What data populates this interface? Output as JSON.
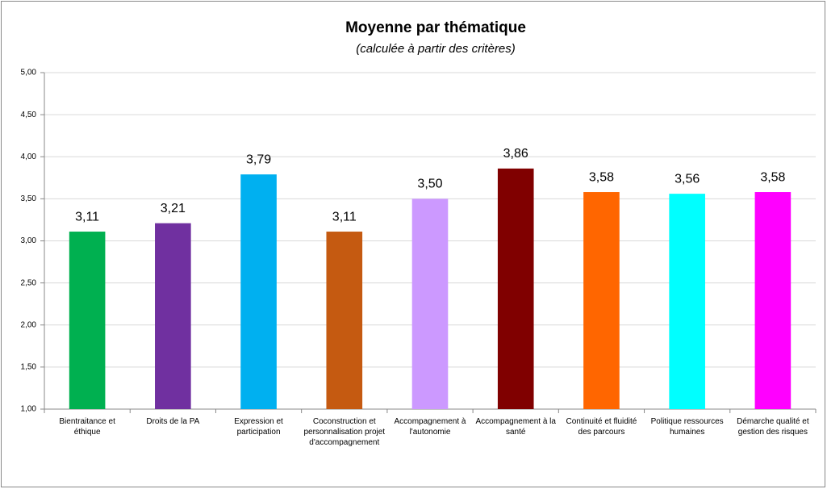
{
  "chart_data": {
    "type": "bar",
    "title": "Moyenne par thématique",
    "subtitle": "(calculée à partir des critères)",
    "categories": [
      "Bientraitance et éthique",
      "Droits de la PA",
      "Expression et participation",
      "Coconstruction et personnalisation projet d'accompagnement",
      "Accompagnement à l'autonomie",
      "Accompagnement à la santé",
      "Continuité et fluidité des parcours",
      "Politique ressources humaines",
      "Démarche qualité et gestion des risques"
    ],
    "values": [
      3.11,
      3.21,
      3.79,
      3.11,
      3.5,
      3.86,
      3.58,
      3.56,
      3.58
    ],
    "value_labels": [
      "3,11",
      "3,21",
      "3,79",
      "3,11",
      "3,50",
      "3,86",
      "3,58",
      "3,56",
      "3,58"
    ],
    "colors": [
      "#00b050",
      "#7030a0",
      "#00b0f0",
      "#c55a11",
      "#cc99ff",
      "#800000",
      "#ff6600",
      "#00ffff",
      "#ff00ff"
    ],
    "ylim": [
      1,
      5
    ],
    "yticks": [
      {
        "value": 1,
        "label": "1,00"
      },
      {
        "value": 1.5,
        "label": "1,50"
      },
      {
        "value": 2,
        "label": "2,00"
      },
      {
        "value": 2.5,
        "label": "2,50"
      },
      {
        "value": 3,
        "label": "3,00"
      },
      {
        "value": 3.5,
        "label": "3,50"
      },
      {
        "value": 4,
        "label": "4,00"
      },
      {
        "value": 4.5,
        "label": "4,50"
      },
      {
        "value": 5,
        "label": "5,00"
      }
    ],
    "grid": true
  }
}
